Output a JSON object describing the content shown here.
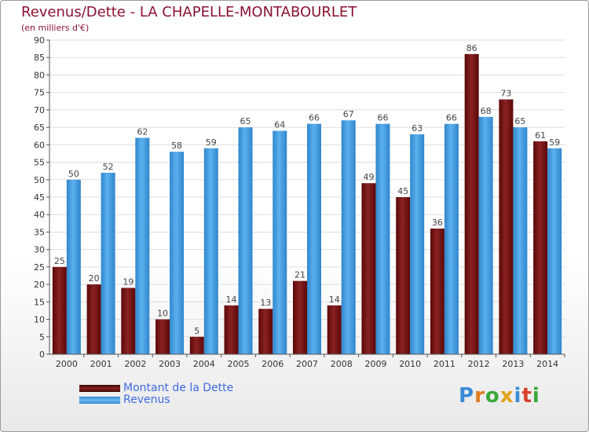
{
  "header": {
    "title": "Revenus/Dette - LA CHAPELLE-MONTABOURLET",
    "subtitle": "(en milliers d'€)"
  },
  "legend": {
    "items": [
      {
        "label": "Montant de la Dette",
        "color": "#7a1212"
      },
      {
        "label": "Revenus",
        "color": "#4da3e6"
      }
    ]
  },
  "logo": {
    "letters": [
      {
        "char": "P",
        "color": "#3a8ad8"
      },
      {
        "char": "r",
        "color": "#e07a1a"
      },
      {
        "char": "o",
        "color": "#3aa83a"
      },
      {
        "char": "x",
        "color": "#e0a21a"
      },
      {
        "char": "i",
        "color": "#3a8ad8"
      },
      {
        "char": "t",
        "color": "#d8402a"
      },
      {
        "char": "i",
        "color": "#3aa83a"
      }
    ]
  },
  "chart_data": {
    "type": "bar",
    "title": "Revenus/Dette - LA CHAPELLE-MONTABOURLET",
    "subtitle": "(en milliers d'€)",
    "categories": [
      "2000",
      "2001",
      "2002",
      "2003",
      "2004",
      "2005",
      "2006",
      "2007",
      "2008",
      "2009",
      "2010",
      "2011",
      "2012",
      "2013",
      "2014"
    ],
    "series": [
      {
        "name": "Montant de la Dette",
        "color": "#7a1212",
        "values": [
          25,
          20,
          19,
          10,
          5,
          14,
          13,
          21,
          14,
          49,
          45,
          36,
          86,
          73,
          61
        ]
      },
      {
        "name": "Revenus",
        "color": "#4da3e6",
        "values": [
          50,
          52,
          62,
          58,
          59,
          65,
          64,
          66,
          67,
          66,
          63,
          66,
          68,
          65,
          59
        ]
      }
    ],
    "yticks": [
      0,
      5,
      10,
      15,
      20,
      25,
      30,
      35,
      40,
      45,
      50,
      55,
      60,
      65,
      70,
      75,
      80,
      85,
      90
    ],
    "ylim": [
      0,
      90
    ],
    "grid": true,
    "legend_position": "bottom-left"
  }
}
